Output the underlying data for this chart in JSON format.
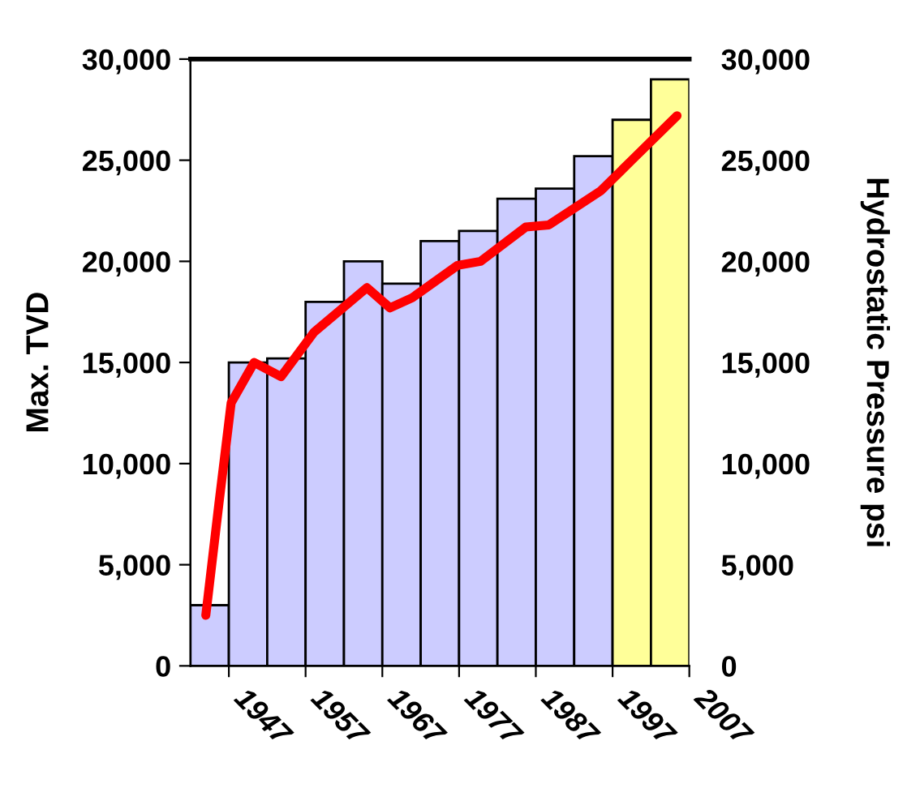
{
  "chart_data": {
    "type": "bar",
    "ylabel": "Max. TVD",
    "y2label": "Hydrostatic Pressure psi",
    "x": [
      1944.5,
      1949.5,
      1954.5,
      1959.5,
      1964.5,
      1969.5,
      1974.5,
      1979.5,
      1984.5,
      1989.5,
      1994.5,
      1999.5,
      2004.5
    ],
    "xlim": [
      1942,
      2007
    ],
    "xticks": [
      1947,
      1957,
      1967,
      1977,
      1987,
      1997,
      2007
    ],
    "ylim": [
      0,
      30000
    ],
    "yticks": [
      {
        "value": 0,
        "label": "0"
      },
      {
        "value": 5000,
        "label": "5,000"
      },
      {
        "value": 10000,
        "label": "10,000"
      },
      {
        "value": 15000,
        "label": "15,000"
      },
      {
        "value": 20000,
        "label": "20,000"
      },
      {
        "value": 25000,
        "label": "25,000"
      },
      {
        "value": 30000,
        "label": "30,000"
      }
    ],
    "y2lim": [
      0,
      30000
    ],
    "y2ticks": [
      {
        "value": 0,
        "label": "0"
      },
      {
        "value": 5000,
        "label": "5,000"
      },
      {
        "value": 10000,
        "label": "10,000"
      },
      {
        "value": 15000,
        "label": "15,000"
      },
      {
        "value": 20000,
        "label": "20,000"
      },
      {
        "value": 25000,
        "label": "25,000"
      },
      {
        "value": 30000,
        "label": "30,000"
      }
    ],
    "grid": false,
    "legend": false,
    "series": [
      {
        "values": [
          3000,
          15000,
          15200,
          18000,
          20000,
          18900,
          21000,
          21500,
          23100,
          23600,
          25200,
          27000,
          29000
        ],
        "colors": [
          "#ccccff",
          "#ccccff",
          "#ccccff",
          "#ccccff",
          "#ccccff",
          "#ccccff",
          "#ccccff",
          "#ccccff",
          "#ccccff",
          "#ccccff",
          "#ccccff",
          "#ffff99",
          "#ffff99"
        ]
      },
      {
        "type": "line",
        "axis": "y2",
        "color": "#ff0000",
        "line_style": "solid",
        "marker": "none",
        "x": [
          1944.0,
          1945.7,
          1947.3,
          1950.3,
          1953.8,
          1958.1,
          1965.0,
          1968.0,
          1970.9,
          1976.8,
          1979.8,
          1985.7,
          1988.7,
          1995.5,
          1999.5,
          2005.4
        ],
        "values": [
          2500,
          8000,
          13000,
          15000,
          14300,
          16500,
          18700,
          17700,
          18200,
          19800,
          20000,
          21700,
          21800,
          23500,
          25000,
          27200
        ]
      }
    ]
  }
}
